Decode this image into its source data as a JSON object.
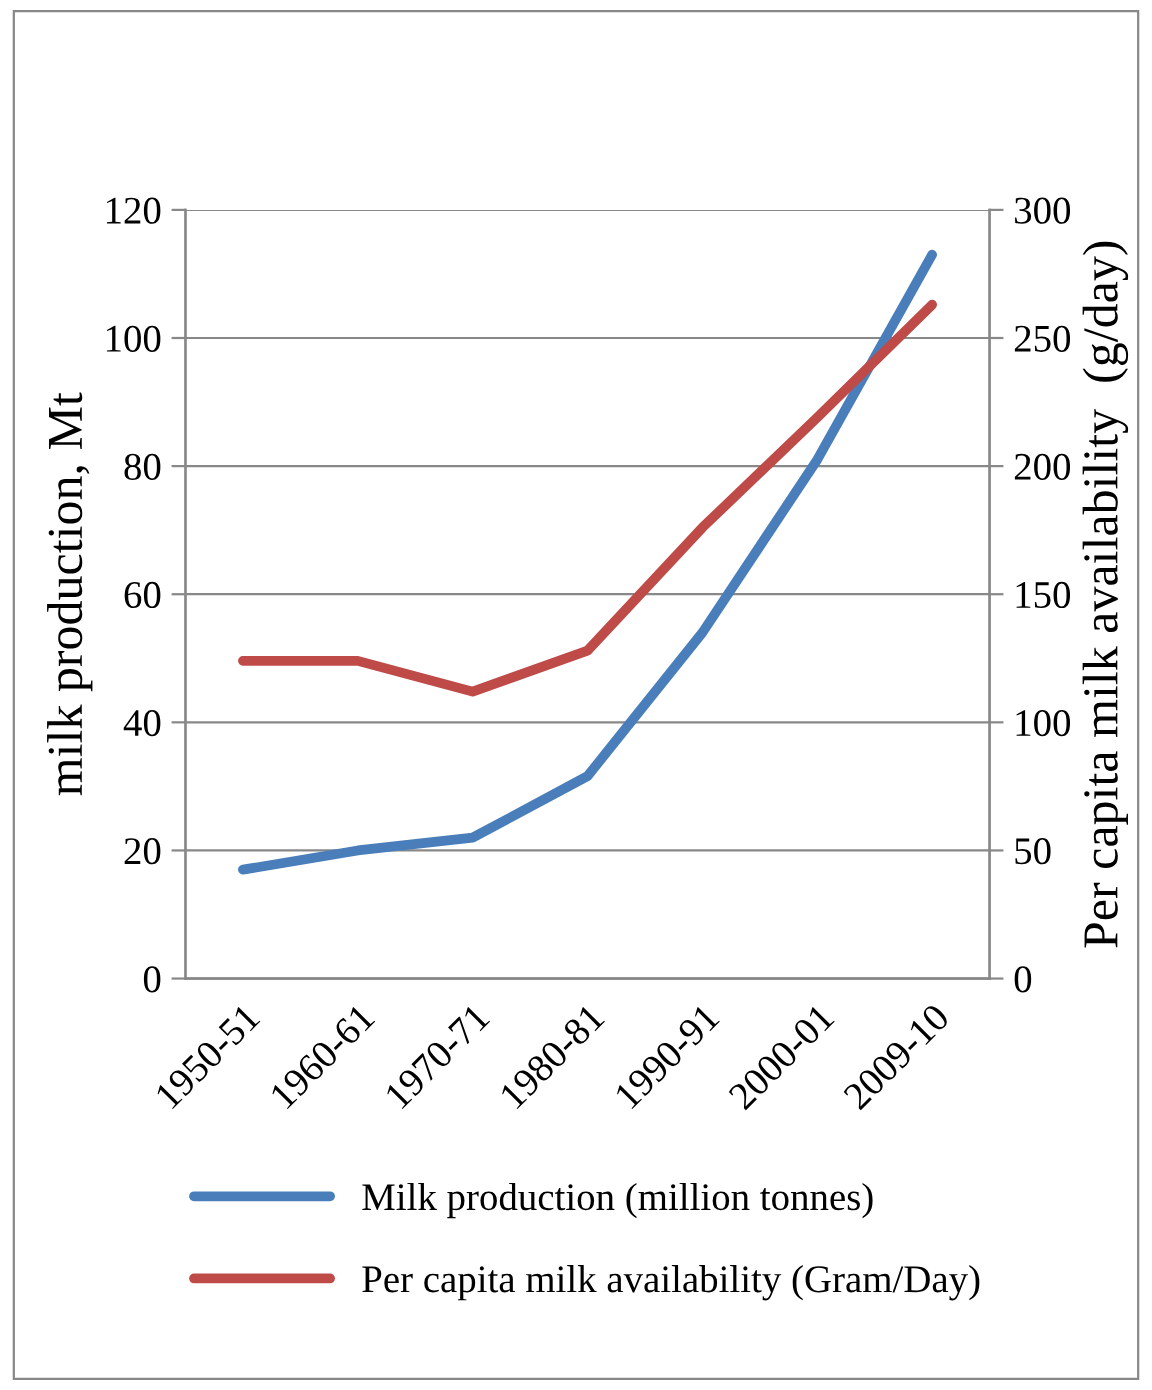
{
  "chart_data": {
    "type": "line",
    "ylabel": "milk production, Mt",
    "y2label": "Per capita milk availability  (g/day)",
    "categories": [
      "1950-51",
      "1960-61",
      "1970-71",
      "1980-81",
      "1990-91",
      "2000-01",
      "2009-10"
    ],
    "series": [
      {
        "name": "Milk production (million tonnes)",
        "color": "#4a7ebb",
        "values": [
          17,
          20,
          22,
          31.6,
          54,
          81,
          113
        ]
      },
      {
        "name": "Per capita milk availability (Gram/Day)",
        "color": "#be4b48",
        "axis": "y2",
        "values": [
          124,
          124,
          112,
          128,
          176,
          219,
          263
        ]
      }
    ],
    "ylim": [
      0,
      120
    ],
    "yticks": [
      0,
      20,
      40,
      60,
      80,
      100,
      120
    ],
    "y2lim": [
      0,
      300
    ],
    "y2ticks": [
      0,
      50,
      100,
      150,
      200,
      250,
      300
    ],
    "grid": "y",
    "legend": "bottom",
    "marker": "none",
    "line_style": "solid"
  }
}
